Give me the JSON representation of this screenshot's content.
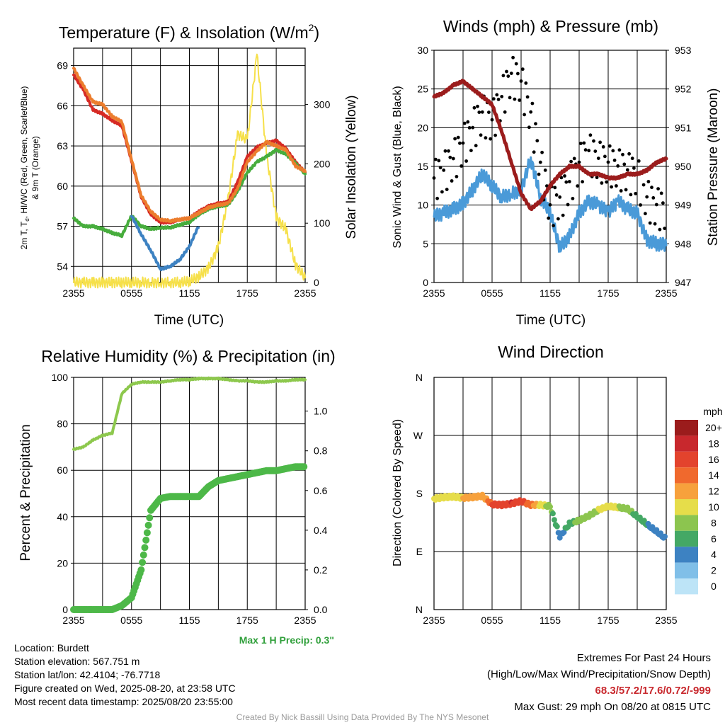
{
  "colors": {
    "temp": "#d62a24",
    "wc": "#ec7d2d",
    "dew": "#47ad3d",
    "sonic": "#3d82c2",
    "solar": "#f6e04a",
    "wind": "#4a9ad8",
    "gust": "#000000",
    "pressure": "#9b1c1c",
    "rh": "#8dc84d",
    "precip": "#4db848",
    "precipnote": "#31a03c"
  },
  "panels": {
    "temp": {
      "title": "Temperature (F) & Insolation (W/m",
      "title_sup": "2",
      "title_end": ")",
      "ylabel_lines": [
        "2m T, T",
        "d",
        ", HI/WC (Red, Green, Scarlet/Blue)",
        "& 9m T (Orange)"
      ],
      "y2label": "Solar Insolation (Yellow)",
      "xlabel": "Time (UTC)"
    },
    "wind": {
      "title": "Winds (mph) & Pressure (mb)",
      "ylabel": "Sonic Wind & Gust (Blue, Black)",
      "y2label": "Station Pressure (Maroon)",
      "xlabel": "Time (UTC)"
    },
    "rh": {
      "title": "Relative Humidity (%) & Precipitation (in)",
      "ylabel": "Percent & Precipitation",
      "precip_note": "Max 1 H Precip: 0.3\""
    },
    "dir": {
      "title": "Wind Direction",
      "ylabel": "Direction (Colored By Speed)",
      "colorbar_title": "mph",
      "colorbar_labels": [
        "20+",
        "18",
        "16",
        "14",
        "12",
        "10",
        "8",
        "6",
        "4",
        "2",
        "0"
      ],
      "colorbar_colors": [
        "#9b1c1c",
        "#c8282d",
        "#e3432d",
        "#f0692d",
        "#f7a13c",
        "#e6dd4a",
        "#8cc54f",
        "#44a865",
        "#3d82c2",
        "#80bfe8",
        "#bde4f7"
      ]
    }
  },
  "chart_data": [
    {
      "type": "line",
      "title": "Temperature (F) & Insolation (W/m2)",
      "xlabel": "Time (UTC)",
      "ylabel": "2m T, Td, HI/WC (Red, Green, Scarlet/Blue) & 9m T (Orange)",
      "y2label": "Solar Insolation (Yellow)",
      "x_ticks": [
        "2355",
        "0555",
        "1155",
        "1755",
        "2355"
      ],
      "ylim": [
        52.8,
        70.3
      ],
      "y_ticks": [
        54,
        57,
        60,
        63,
        66,
        69
      ],
      "y2lim": [
        0,
        395
      ],
      "y2_ticks": [
        0,
        100,
        200,
        300
      ],
      "x_hours": [
        0,
        1,
        2,
        3,
        4,
        5,
        6,
        7,
        8,
        9,
        10,
        11,
        12,
        13,
        14,
        15,
        16,
        17,
        18,
        19,
        20,
        21,
        22,
        23,
        24
      ],
      "series": [
        {
          "name": "9m T",
          "color": "#ec7d2d",
          "axis": "left",
          "values": [
            68.8,
            67.5,
            66.3,
            66.1,
            65.2,
            64.8,
            62.0,
            59.3,
            58.1,
            57.5,
            57.4,
            57.5,
            57.6,
            58.0,
            58.4,
            58.6,
            58.7,
            59.8,
            61.8,
            62.6,
            63.3,
            63.0,
            62.7,
            61.5,
            61.1
          ]
        },
        {
          "name": "2m T",
          "color": "#d62a24",
          "axis": "left",
          "values": [
            68.3,
            67.2,
            65.7,
            65.4,
            64.9,
            64.5,
            61.9,
            59.2,
            57.9,
            57.3,
            57.3,
            57.5,
            57.6,
            58.1,
            58.5,
            58.7,
            58.8,
            60.3,
            62.2,
            62.9,
            63.2,
            63.4,
            62.8,
            61.8,
            61.0
          ]
        },
        {
          "name": "Td",
          "color": "#47ad3d",
          "axis": "left",
          "values": [
            57.6,
            57.0,
            57.0,
            56.8,
            56.5,
            56.3,
            57.8,
            57.0,
            56.8,
            56.9,
            56.9,
            57.1,
            57.3,
            57.9,
            58.3,
            58.5,
            58.6,
            59.6,
            61.0,
            61.8,
            62.2,
            62.7,
            62.4,
            61.7,
            60.9
          ]
        },
        {
          "name": "Sonic T",
          "color": "#3d82c2",
          "axis": "left",
          "values": [
            null,
            null,
            null,
            null,
            null,
            null,
            57.8,
            56.4,
            55.2,
            53.8,
            54.0,
            54.5,
            55.5,
            57.1,
            null,
            null,
            null,
            null,
            null,
            null,
            null,
            null,
            null,
            null,
            null
          ]
        },
        {
          "name": "Solar insolation",
          "color": "#f6e04a",
          "axis": "right",
          "values": [
            0,
            0,
            0,
            0,
            0,
            0,
            0,
            0,
            0,
            0,
            0,
            0,
            2,
            10,
            25,
            60,
            140,
            250,
            240,
            385,
            215,
            110,
            90,
            30,
            8
          ]
        }
      ]
    },
    {
      "type": "line",
      "title": "Winds (mph) & Pressure (mb)",
      "xlabel": "Time (UTC)",
      "ylabel": "Sonic Wind & Gust (Blue, Black)",
      "y2label": "Station Pressure (Maroon)",
      "x_ticks": [
        "2355",
        "0555",
        "1155",
        "1755",
        "2355"
      ],
      "ylim": [
        0,
        30
      ],
      "y_ticks": [
        0,
        5,
        10,
        15,
        20,
        25,
        30
      ],
      "y2lim": [
        947,
        953
      ],
      "y2_ticks": [
        947,
        948,
        949,
        950,
        951,
        952,
        953
      ],
      "x_hours": [
        0,
        1,
        2,
        3,
        4,
        5,
        6,
        7,
        8,
        9,
        10,
        11,
        12,
        13,
        14,
        15,
        16,
        17,
        18,
        19,
        20,
        21,
        22,
        23,
        24
      ],
      "series": [
        {
          "name": "Sonic Wind",
          "color": "#4a9ad8",
          "axis": "left",
          "values": [
            8.5,
            9.0,
            9.5,
            10.2,
            12.0,
            14.0,
            12.5,
            11.0,
            11.5,
            12.0,
            16.0,
            11.0,
            9.0,
            4.5,
            6.0,
            9.0,
            10.5,
            10.0,
            9.0,
            10.5,
            9.5,
            9.0,
            5.5,
            5.0,
            4.8
          ]
        },
        {
          "name": "Gust",
          "color": "#000000",
          "axis": "left",
          "values": [
            13.5,
            14.5,
            16.0,
            18.0,
            20.0,
            22.0,
            21.0,
            24.0,
            27.0,
            26.0,
            22.0,
            15.5,
            10.0,
            11.0,
            13.0,
            15.5,
            17.0,
            16.0,
            15.5,
            15.0,
            14.5,
            14.0,
            11.0,
            10.0,
            9.5
          ]
        },
        {
          "name": "Station Pressure",
          "color": "#9b1c1c",
          "axis": "right",
          "values": [
            951.8,
            951.9,
            952.1,
            952.2,
            952.0,
            951.8,
            951.6,
            950.9,
            950.1,
            949.3,
            948.9,
            949.1,
            949.5,
            949.8,
            950.0,
            950.0,
            949.8,
            949.8,
            949.7,
            949.7,
            949.8,
            949.8,
            949.9,
            950.1,
            950.2
          ]
        }
      ]
    },
    {
      "type": "line",
      "title": "Relative Humidity (%) & Precipitation (in)",
      "ylabel": "Percent & Precipitation",
      "x_ticks": [
        "2355",
        "0555",
        "1155",
        "1755",
        "2355"
      ],
      "ylim": [
        0,
        100
      ],
      "y_ticks": [
        0,
        20,
        40,
        60,
        80,
        100
      ],
      "y2lim": [
        0,
        1.17
      ],
      "y2_ticks": [
        0.0,
        0.2,
        0.4,
        0.6,
        0.8,
        1.0
      ],
      "x_hours": [
        0,
        1,
        2,
        3,
        4,
        5,
        6,
        7,
        8,
        9,
        10,
        11,
        12,
        13,
        14,
        15,
        16,
        17,
        18,
        19,
        20,
        21,
        22,
        23,
        24
      ],
      "series": [
        {
          "name": "Relative Humidity",
          "color": "#8dc84d",
          "axis": "left",
          "values": [
            69,
            70,
            73,
            75,
            76,
            93,
            97,
            98,
            98,
            98,
            98.5,
            99,
            99,
            99.5,
            99.5,
            99.5,
            99,
            98.5,
            98.5,
            98,
            98,
            98.5,
            98.5,
            99,
            99
          ]
        },
        {
          "name": "Precipitation",
          "color": "#4db848",
          "axis": "right",
          "values": [
            0,
            0,
            0,
            0,
            0,
            0.02,
            0.06,
            0.2,
            0.5,
            0.56,
            0.57,
            0.57,
            0.57,
            0.57,
            0.62,
            0.65,
            0.66,
            0.67,
            0.68,
            0.69,
            0.7,
            0.7,
            0.71,
            0.72,
            0.72
          ]
        }
      ]
    },
    {
      "type": "scatter",
      "title": "Wind Direction",
      "ylabel": "Direction (Colored By Speed)",
      "x_ticks": [
        "2355",
        "0555",
        "1155",
        "1755",
        "2355"
      ],
      "y_ticks": [
        "N",
        "E",
        "S",
        "W",
        "N"
      ],
      "ylim_deg": [
        0,
        360
      ],
      "colorbar_title": "mph",
      "x_hours": [
        0,
        1,
        2,
        3,
        4,
        5,
        6,
        7,
        8,
        9,
        10,
        11,
        12,
        13,
        14,
        15,
        16,
        17,
        18,
        19,
        20,
        21,
        22,
        23,
        24
      ],
      "direction_deg": [
        172,
        174,
        175,
        173,
        174,
        176,
        163,
        162,
        164,
        168,
        162,
        162,
        160,
        113,
        133,
        138,
        145,
        154,
        160,
        158,
        156,
        144,
        132,
        121,
        109
      ],
      "speed_mph": [
        9,
        10,
        10,
        11,
        12,
        11,
        15,
        16,
        17,
        16,
        14,
        10,
        8,
        4,
        6,
        8,
        8,
        9,
        10,
        9,
        8,
        6,
        5,
        4,
        4
      ]
    }
  ],
  "info": {
    "location": "Location: Burdett",
    "elevation": "Station elevation: 567.751 m",
    "latlon": "Station lat/lon: 42.4104; -76.7718",
    "created": "Figure created on Wed, 2025-08-20, at 23:58 UTC",
    "recent": "Most recent data timestamp: 2025/08/20 23:55:00",
    "extremes_title": "Extremes For Past 24 Hours",
    "extremes_sub": "(High/Low/Max Wind/Precipitation/Snow Depth)",
    "extremes_values": "68.3/57.2/17.6/0.72/-999",
    "max_gust": "Max Gust: 29 mph On 08/20 at 0815 UTC"
  },
  "footer": "Created By Nick Bassill Using Data Provided By The NYS Mesonet"
}
